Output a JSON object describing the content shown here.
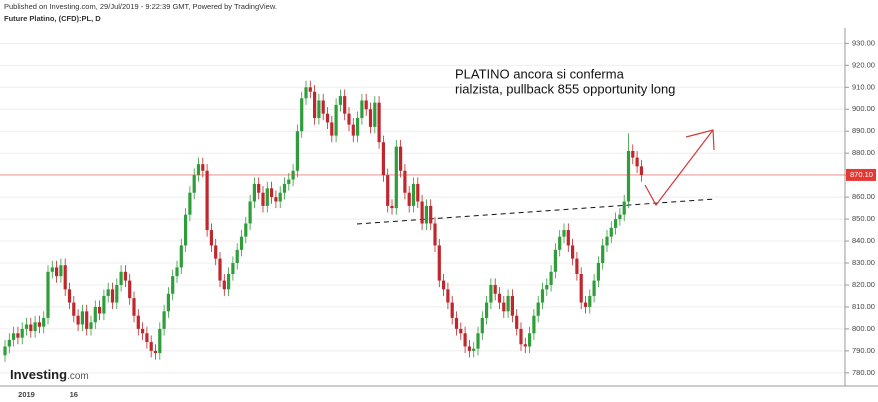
{
  "chart_data": {
    "type": "candlestick",
    "header": "Published on Investing.com, 29/Jul/2019 - 9:22:39 GMT, Powered by TradingView.",
    "title": "Future Platino, (CFD):PL, D",
    "annotation": [
      "PLATINO ancora si conferma",
      "rialzista, pullback 855 opportunity long"
    ],
    "logo": {
      "name": "Investing",
      "suffix": ".com"
    },
    "up_color": "#2f9e3a",
    "down_color": "#c0272d",
    "categories": [
      null,
      null,
      null,
      null,
      null,
      "2019",
      null,
      null,
      null,
      null,
      null,
      null,
      null,
      null,
      null,
      null,
      "16",
      null,
      null,
      null,
      null,
      null,
      null,
      null,
      null,
      null,
      null,
      null,
      null,
      null,
      null,
      null,
      null,
      null,
      null,
      null,
      null,
      null,
      null,
      null,
      null,
      null,
      null,
      null,
      null,
      null,
      null,
      null,
      null,
      null,
      null,
      null,
      null,
      null,
      null,
      null,
      null,
      null,
      null,
      null,
      null,
      null,
      null,
      null,
      null,
      null,
      null,
      null,
      null,
      null,
      null,
      null,
      null,
      null,
      null,
      null,
      null,
      null,
      null,
      null,
      null,
      null,
      null,
      null,
      null,
      null,
      null,
      null,
      null,
      null,
      null,
      null,
      null,
      null,
      null,
      null,
      null,
      null,
      null,
      null,
      null,
      null,
      null,
      null,
      null,
      null,
      null,
      null,
      null,
      null,
      null,
      null,
      null,
      null,
      null,
      null,
      null,
      null,
      null,
      null,
      null,
      null,
      null,
      null,
      null,
      null,
      null,
      null,
      null,
      null,
      null,
      null,
      null,
      null,
      null,
      null,
      null,
      null,
      null,
      null,
      null,
      null,
      null,
      null,
      null,
      null,
      null,
      null,
      null
    ],
    "open": [
      788,
      792,
      795,
      798,
      796,
      800,
      802,
      799,
      803,
      801,
      805,
      826,
      828,
      824,
      829,
      818,
      812,
      806,
      802,
      808,
      800,
      803,
      810,
      807,
      815,
      818,
      812,
      820,
      826,
      822,
      814,
      806,
      800,
      798,
      794,
      790,
      789,
      800,
      808,
      816,
      824,
      828,
      838,
      852,
      862,
      870,
      875,
      872,
      845,
      838,
      832,
      822,
      818,
      825,
      830,
      836,
      842,
      848,
      858,
      866,
      862,
      856,
      864,
      860,
      858,
      862,
      866,
      868,
      872,
      890,
      905,
      910,
      908,
      896,
      904,
      898,
      894,
      888,
      902,
      906,
      898,
      893,
      888,
      896,
      904,
      900,
      892,
      903,
      885,
      870,
      856,
      855,
      883,
      872,
      862,
      856,
      866,
      858,
      848,
      856,
      848,
      838,
      822,
      818,
      812,
      805,
      800,
      798,
      792,
      790,
      791,
      798,
      805,
      812,
      820,
      816,
      812,
      808,
      815,
      806,
      800,
      793,
      792,
      798,
      806,
      812,
      818,
      820,
      826,
      836,
      842,
      845,
      838,
      832,
      825,
      812,
      810,
      815,
      822,
      830,
      838,
      842,
      846,
      850,
      852,
      858,
      881,
      878,
      874
    ],
    "high": [
      795,
      798,
      801,
      801,
      803,
      805,
      805,
      806,
      806,
      808,
      829,
      831,
      831,
      832,
      832,
      821,
      815,
      809,
      811,
      811,
      806,
      813,
      813,
      818,
      821,
      821,
      823,
      829,
      829,
      825,
      817,
      809,
      803,
      801,
      797,
      793,
      803,
      811,
      819,
      827,
      831,
      841,
      855,
      865,
      873,
      878,
      878,
      875,
      848,
      841,
      835,
      825,
      828,
      833,
      839,
      845,
      851,
      861,
      869,
      869,
      865,
      867,
      867,
      863,
      865,
      869,
      871,
      875,
      893,
      908,
      913,
      913,
      911,
      907,
      907,
      901,
      897,
      905,
      909,
      909,
      901,
      896,
      899,
      907,
      907,
      903,
      906,
      906,
      888,
      873,
      859,
      886,
      886,
      875,
      865,
      869,
      869,
      861,
      859,
      859,
      851,
      841,
      825,
      821,
      815,
      808,
      803,
      801,
      795,
      794,
      801,
      808,
      815,
      823,
      823,
      819,
      815,
      818,
      818,
      809,
      803,
      796,
      801,
      809,
      815,
      821,
      823,
      829,
      839,
      845,
      848,
      848,
      841,
      835,
      828,
      815,
      818,
      825,
      833,
      841,
      845,
      849,
      853,
      855,
      861,
      889,
      884,
      881,
      877
    ],
    "low": [
      785,
      789,
      792,
      793,
      793,
      797,
      796,
      796,
      798,
      798,
      802,
      823,
      821,
      821,
      815,
      809,
      803,
      799,
      799,
      797,
      797,
      800,
      804,
      804,
      812,
      809,
      809,
      817,
      819,
      811,
      803,
      797,
      795,
      791,
      787,
      786,
      786,
      797,
      805,
      813,
      821,
      825,
      835,
      849,
      859,
      867,
      869,
      842,
      835,
      829,
      819,
      815,
      815,
      822,
      827,
      833,
      839,
      845,
      855,
      859,
      853,
      853,
      857,
      855,
      855,
      859,
      863,
      865,
      869,
      887,
      902,
      905,
      893,
      893,
      895,
      891,
      885,
      885,
      899,
      895,
      890,
      885,
      885,
      893,
      897,
      889,
      889,
      882,
      867,
      853,
      852,
      852,
      869,
      859,
      853,
      853,
      855,
      845,
      845,
      845,
      835,
      819,
      815,
      809,
      802,
      797,
      795,
      789,
      787,
      787,
      788,
      795,
      802,
      809,
      813,
      809,
      805,
      805,
      803,
      797,
      790,
      789,
      789,
      795,
      803,
      809,
      815,
      817,
      823,
      833,
      839,
      835,
      829,
      822,
      809,
      807,
      807,
      812,
      819,
      827,
      835,
      839,
      843,
      847,
      849,
      855,
      875,
      871,
      867
    ],
    "close": [
      792,
      795,
      798,
      796,
      800,
      802,
      799,
      803,
      801,
      805,
      826,
      828,
      824,
      829,
      818,
      812,
      806,
      802,
      808,
      800,
      803,
      810,
      807,
      815,
      818,
      812,
      820,
      826,
      822,
      814,
      806,
      800,
      798,
      794,
      790,
      789,
      800,
      808,
      816,
      824,
      828,
      838,
      852,
      862,
      870,
      875,
      872,
      845,
      838,
      832,
      822,
      818,
      825,
      830,
      836,
      842,
      848,
      858,
      866,
      862,
      856,
      864,
      860,
      858,
      862,
      866,
      868,
      872,
      890,
      905,
      910,
      908,
      896,
      904,
      898,
      894,
      888,
      902,
      906,
      898,
      893,
      888,
      896,
      904,
      900,
      892,
      903,
      885,
      870,
      856,
      855,
      883,
      872,
      862,
      856,
      866,
      858,
      848,
      856,
      848,
      838,
      822,
      818,
      812,
      805,
      800,
      798,
      792,
      790,
      791,
      798,
      805,
      812,
      820,
      816,
      812,
      808,
      815,
      806,
      800,
      793,
      792,
      798,
      806,
      812,
      818,
      820,
      826,
      836,
      842,
      845,
      838,
      832,
      825,
      812,
      810,
      815,
      822,
      830,
      838,
      842,
      846,
      850,
      852,
      858,
      881,
      878,
      874,
      870.1
    ],
    "price_line": {
      "value": 870.1,
      "label": "870.10",
      "color": "#e53935"
    },
    "ylim": [
      774,
      937
    ],
    "yticks": [
      {
        "value": 780,
        "label": "780.00"
      },
      {
        "value": 790,
        "label": "790.00"
      },
      {
        "value": 800,
        "label": "800.00"
      },
      {
        "value": 810,
        "label": "810.00"
      },
      {
        "value": 820,
        "label": "820.00"
      },
      {
        "value": 830,
        "label": "830.00"
      },
      {
        "value": 840,
        "label": "840.00"
      },
      {
        "value": 850,
        "label": "850.00"
      },
      {
        "value": 860,
        "label": "860.00"
      },
      {
        "value": 870,
        "label": "870.00"
      },
      {
        "value": 880,
        "label": "880.00"
      },
      {
        "value": 890,
        "label": "890.00"
      },
      {
        "value": 900,
        "label": "900.00"
      },
      {
        "value": 910,
        "label": "910.00"
      },
      {
        "value": 920,
        "label": "920.00"
      },
      {
        "value": 930,
        "label": "930.00"
      }
    ],
    "grid": true
  }
}
